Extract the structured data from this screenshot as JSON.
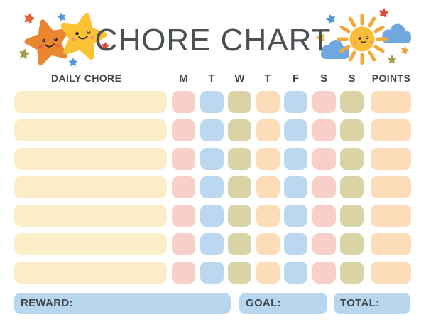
{
  "title": "CHORE CHART",
  "header": {
    "chore_label": "DAILY CHORE",
    "days": [
      "M",
      "T",
      "W",
      "T",
      "F",
      "S",
      "S"
    ],
    "points_label": "POINTS"
  },
  "grid": {
    "row_count": 7,
    "day_cell_colors": [
      "pink",
      "blue",
      "olive",
      "peach",
      "blue",
      "pink",
      "olive"
    ],
    "points_cell_color": "peach",
    "chore_cell_color": "cream"
  },
  "palette": {
    "cream": "#FBEEC6",
    "pink": "#F8D0C9",
    "blue": "#BCD8F0",
    "olive": "#D8D4A5",
    "peach": "#FDDCBA",
    "footer_blue": "#B9D6EF",
    "text": "#43474C",
    "title": "#4B5055"
  },
  "footer": {
    "reward_label": "REWARD:",
    "goal_label": "GOAL:",
    "total_label": "TOTAL:"
  },
  "decorations": {
    "left": "two-smiling-stars-with-mini-stars",
    "right": "smiling-sun-with-clouds-and-mini-stars",
    "colors": {
      "orange_star": "#E9862F",
      "yellow_star": "#FBC233",
      "small_red": "#DF4938",
      "small_orange_red": "#E7603B",
      "small_blue": "#4E97D9",
      "small_olive": "#A39D47",
      "small_yellow": "#F5C242",
      "small_orange": "#EFA33D",
      "sun_body": "#FBBD36",
      "sun_ray": "#F3A83B",
      "cloud": "#70A9DF",
      "face": "#2E2117",
      "cheek_orange": "#E1664B",
      "cheek_pink": "#F2907C"
    }
  }
}
